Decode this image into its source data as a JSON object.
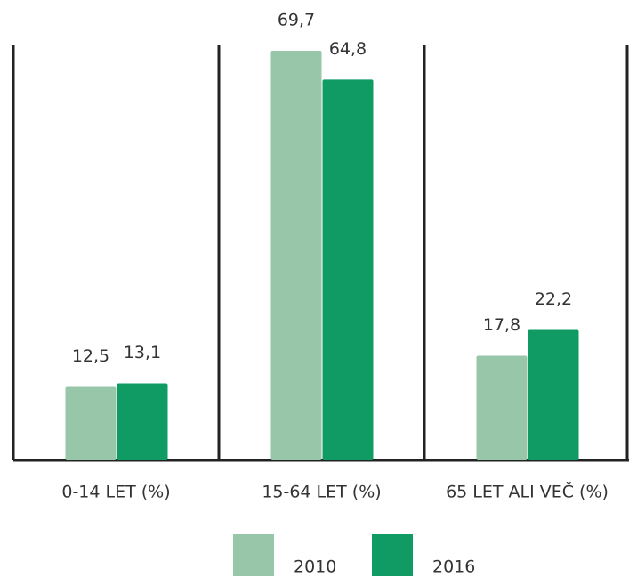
{
  "chart_data": {
    "type": "bar",
    "categories": [
      "0-14 LET (%)",
      "15-64 LET (%)",
      "65 LET ALI VEČ (%)"
    ],
    "series": [
      {
        "name": "2010",
        "color": "#97c7a8",
        "values": [
          12.5,
          69.7,
          17.8
        ],
        "value_labels": [
          "12,5",
          "69,7",
          "17,8"
        ]
      },
      {
        "name": "2016",
        "color": "#0f9b63",
        "values": [
          13.1,
          64.8,
          22.2
        ],
        "value_labels": [
          "13,1",
          "64,8",
          "22,2"
        ]
      }
    ]
  }
}
